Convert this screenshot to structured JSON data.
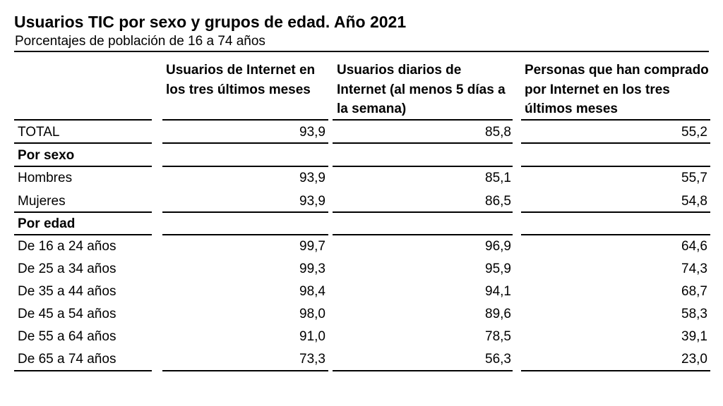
{
  "chart_data": {
    "type": "table",
    "title": "Usuarios TIC por sexo y grupos de edad. Año 2021",
    "subtitle": "Porcentajes de población de 16 a 74 años",
    "columns": [
      "Usuarios de Internet en los tres últimos meses",
      "Usuarios diarios de Internet (al menos 5 días a la semana)",
      "Personas que han comprado por Internet en los tres últimos meses"
    ],
    "rows": [
      {
        "label": "TOTAL",
        "values": [
          "93,9",
          "85,8",
          "55,2"
        ]
      },
      {
        "label": "Por sexo",
        "section": true,
        "values": [
          "",
          "",
          ""
        ]
      },
      {
        "label": "Hombres",
        "values": [
          "93,9",
          "85,1",
          "55,7"
        ]
      },
      {
        "label": "Mujeres",
        "values": [
          "93,9",
          "86,5",
          "54,8"
        ]
      },
      {
        "label": "Por edad",
        "section": true,
        "values": [
          "",
          "",
          ""
        ]
      },
      {
        "label": "De 16 a 24 años",
        "values": [
          "99,7",
          "96,9",
          "64,6"
        ]
      },
      {
        "label": "De 25 a 34 años",
        "values": [
          "99,3",
          "95,9",
          "74,3"
        ]
      },
      {
        "label": "De 35 a 44 años",
        "values": [
          "98,4",
          "94,1",
          "68,7"
        ]
      },
      {
        "label": "De 45 a 54 años",
        "values": [
          "98,0",
          "89,6",
          "58,3"
        ]
      },
      {
        "label": "De 55 a 64 años",
        "values": [
          "91,0",
          "78,5",
          "39,1"
        ]
      },
      {
        "label": "De 65 a 74 años",
        "values": [
          "73,3",
          "56,3",
          "23,0"
        ]
      }
    ]
  }
}
